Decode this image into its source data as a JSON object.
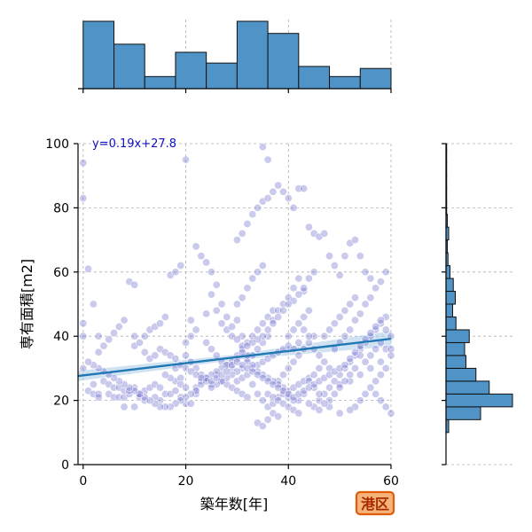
{
  "chart_data": {
    "type": "scatter",
    "xlabel": "築年数[年]",
    "ylabel": "専有面積[m2]",
    "xlim": [
      -1,
      60
    ],
    "ylim": [
      0,
      100
    ],
    "xticks": [
      0,
      20,
      40,
      60
    ],
    "yticks": [
      0,
      20,
      40,
      60,
      80,
      100
    ],
    "grid": true,
    "equation_label": "y=0.19x+27.8",
    "regression": {
      "slope": 0.19,
      "intercept": 27.8,
      "color": "#1f77b4",
      "band_color": "#a6cbe8"
    },
    "badge": "港区",
    "point_color": "#5555cc",
    "hist_color": "#4f93c7",
    "points": [
      [
        0,
        94
      ],
      [
        0,
        83
      ],
      [
        1,
        61
      ],
      [
        0,
        44
      ],
      [
        0,
        40
      ],
      [
        3,
        40
      ],
      [
        0,
        30
      ],
      [
        2,
        25
      ],
      [
        1,
        23
      ],
      [
        2,
        22
      ],
      [
        3,
        22
      ],
      [
        3,
        21
      ],
      [
        5,
        22
      ],
      [
        6,
        21
      ],
      [
        7,
        21
      ],
      [
        8,
        21
      ],
      [
        9,
        22
      ],
      [
        4,
        26
      ],
      [
        5,
        25
      ],
      [
        6,
        24
      ],
      [
        7,
        24
      ],
      [
        8,
        23
      ],
      [
        9,
        23
      ],
      [
        10,
        24
      ],
      [
        11,
        22
      ],
      [
        11,
        21
      ],
      [
        12,
        23
      ],
      [
        13,
        24
      ],
      [
        14,
        25
      ],
      [
        15,
        24
      ],
      [
        16,
        22
      ],
      [
        12,
        20
      ],
      [
        10,
        18
      ],
      [
        8,
        18
      ],
      [
        15,
        20
      ],
      [
        14,
        21
      ],
      [
        17,
        22
      ],
      [
        18,
        23
      ],
      [
        18,
        26
      ],
      [
        19,
        27
      ],
      [
        19,
        25
      ],
      [
        20,
        24
      ],
      [
        17,
        27
      ],
      [
        16,
        28
      ],
      [
        18,
        30
      ],
      [
        19,
        21
      ],
      [
        20,
        19
      ],
      [
        21,
        19
      ],
      [
        22,
        22
      ],
      [
        22,
        24
      ],
      [
        23,
        26
      ],
      [
        24,
        27
      ],
      [
        25,
        25
      ],
      [
        23,
        28
      ],
      [
        22,
        30
      ],
      [
        21,
        32
      ],
      [
        20,
        34
      ],
      [
        20,
        38
      ],
      [
        21,
        40
      ],
      [
        22,
        42
      ],
      [
        21,
        45
      ],
      [
        24,
        38
      ],
      [
        25,
        36
      ],
      [
        26,
        34
      ],
      [
        27,
        32
      ],
      [
        28,
        31
      ],
      [
        29,
        30
      ],
      [
        26,
        28
      ],
      [
        27,
        26
      ],
      [
        28,
        25
      ],
      [
        29,
        24
      ],
      [
        30,
        23
      ],
      [
        31,
        22
      ],
      [
        32,
        21
      ],
      [
        30,
        26
      ],
      [
        31,
        27
      ],
      [
        32,
        28
      ],
      [
        33,
        30
      ],
      [
        34,
        31
      ],
      [
        35,
        32
      ],
      [
        36,
        33
      ],
      [
        37,
        34
      ],
      [
        38,
        35
      ],
      [
        39,
        36
      ],
      [
        40,
        37
      ],
      [
        30,
        34
      ],
      [
        31,
        36
      ],
      [
        32,
        38
      ],
      [
        33,
        40
      ],
      [
        34,
        42
      ],
      [
        35,
        44
      ],
      [
        36,
        46
      ],
      [
        37,
        48
      ],
      [
        30,
        50
      ],
      [
        31,
        52
      ],
      [
        32,
        55
      ],
      [
        33,
        58
      ],
      [
        34,
        60
      ],
      [
        35,
        62
      ],
      [
        30,
        45
      ],
      [
        29,
        40
      ],
      [
        28,
        42
      ],
      [
        27,
        44
      ],
      [
        25,
        53
      ],
      [
        24,
        47
      ],
      [
        26,
        48
      ],
      [
        31,
        40
      ],
      [
        32,
        33
      ],
      [
        33,
        25
      ],
      [
        34,
        22
      ],
      [
        35,
        20
      ],
      [
        36,
        18
      ],
      [
        37,
        16
      ],
      [
        38,
        15
      ],
      [
        34,
        13
      ],
      [
        35,
        12
      ],
      [
        36,
        14
      ],
      [
        37,
        19
      ],
      [
        38,
        21
      ],
      [
        39,
        22
      ],
      [
        40,
        23
      ],
      [
        41,
        24
      ],
      [
        42,
        25
      ],
      [
        43,
        26
      ],
      [
        44,
        27
      ],
      [
        45,
        28
      ],
      [
        46,
        30
      ],
      [
        38,
        26
      ],
      [
        39,
        28
      ],
      [
        40,
        30
      ],
      [
        41,
        32
      ],
      [
        42,
        34
      ],
      [
        43,
        36
      ],
      [
        44,
        38
      ],
      [
        45,
        40
      ],
      [
        40,
        40
      ],
      [
        41,
        42
      ],
      [
        42,
        44
      ],
      [
        43,
        46
      ],
      [
        44,
        48
      ],
      [
        40,
        52
      ],
      [
        41,
        55
      ],
      [
        42,
        58
      ],
      [
        43,
        54
      ],
      [
        39,
        50
      ],
      [
        38,
        48
      ],
      [
        37,
        45
      ],
      [
        36,
        40
      ],
      [
        35,
        38
      ],
      [
        34,
        36
      ],
      [
        33,
        34
      ],
      [
        32,
        32
      ],
      [
        31,
        30
      ],
      [
        30,
        29
      ],
      [
        29,
        28
      ],
      [
        28,
        27
      ],
      [
        27,
        26
      ],
      [
        26,
        25
      ],
      [
        25,
        24
      ],
      [
        36,
        22
      ],
      [
        37,
        21
      ],
      [
        38,
        20
      ],
      [
        39,
        19
      ],
      [
        40,
        18
      ],
      [
        41,
        17
      ],
      [
        42,
        16
      ],
      [
        45,
        18
      ],
      [
        46,
        20
      ],
      [
        47,
        22
      ],
      [
        48,
        24
      ],
      [
        49,
        26
      ],
      [
        50,
        28
      ],
      [
        51,
        30
      ],
      [
        52,
        32
      ],
      [
        53,
        34
      ],
      [
        54,
        36
      ],
      [
        55,
        38
      ],
      [
        56,
        40
      ],
      [
        57,
        42
      ],
      [
        58,
        44
      ],
      [
        59,
        46
      ],
      [
        49,
        36
      ],
      [
        50,
        38
      ],
      [
        51,
        40
      ],
      [
        52,
        42
      ],
      [
        53,
        45
      ],
      [
        54,
        47
      ],
      [
        55,
        50
      ],
      [
        56,
        52
      ],
      [
        57,
        55
      ],
      [
        58,
        57
      ],
      [
        59,
        60
      ],
      [
        48,
        30
      ],
      [
        47,
        32
      ],
      [
        46,
        34
      ],
      [
        45,
        36
      ],
      [
        44,
        40
      ],
      [
        43,
        42
      ],
      [
        42,
        38
      ],
      [
        41,
        36
      ],
      [
        47,
        40
      ],
      [
        48,
        42
      ],
      [
        49,
        44
      ],
      [
        50,
        46
      ],
      [
        51,
        48
      ],
      [
        52,
        50
      ],
      [
        53,
        52
      ],
      [
        50,
        25
      ],
      [
        52,
        26
      ],
      [
        54,
        28
      ],
      [
        56,
        30
      ],
      [
        58,
        32
      ],
      [
        60,
        34
      ],
      [
        59,
        30
      ],
      [
        58,
        28
      ],
      [
        57,
        26
      ],
      [
        56,
        24
      ],
      [
        55,
        22
      ],
      [
        54,
        20
      ],
      [
        53,
        18
      ],
      [
        52,
        17
      ],
      [
        50,
        16
      ],
      [
        48,
        18
      ],
      [
        46,
        17
      ],
      [
        44,
        19
      ],
      [
        60,
        16
      ],
      [
        59,
        18
      ],
      [
        58,
        20
      ],
      [
        57,
        22
      ],
      [
        59,
        36
      ],
      [
        60,
        40
      ],
      [
        58,
        38
      ],
      [
        57,
        36
      ],
      [
        56,
        34
      ],
      [
        55,
        32
      ],
      [
        54,
        34
      ],
      [
        53,
        30
      ],
      [
        52,
        28
      ],
      [
        51,
        26
      ],
      [
        50,
        24
      ],
      [
        49,
        22
      ],
      [
        48,
        20
      ],
      [
        47,
        19
      ],
      [
        46,
        22
      ],
      [
        45,
        24
      ],
      [
        44,
        26
      ],
      [
        43,
        22
      ],
      [
        42,
        20
      ],
      [
        41,
        20
      ],
      [
        40,
        21
      ],
      [
        39,
        24
      ],
      [
        38,
        25
      ],
      [
        37,
        26
      ],
      [
        36,
        27
      ],
      [
        35,
        28
      ],
      [
        34,
        29
      ],
      [
        33,
        31
      ],
      [
        32,
        34
      ],
      [
        31,
        37
      ],
      [
        30,
        39
      ],
      [
        29,
        43
      ],
      [
        28,
        46
      ],
      [
        27,
        50
      ],
      [
        26,
        56
      ],
      [
        25,
        60
      ],
      [
        24,
        63
      ],
      [
        23,
        65
      ],
      [
        22,
        68
      ],
      [
        30,
        70
      ],
      [
        31,
        72
      ],
      [
        32,
        75
      ],
      [
        33,
        78
      ],
      [
        34,
        80
      ],
      [
        35,
        82
      ],
      [
        36,
        83
      ],
      [
        37,
        85
      ],
      [
        38,
        87
      ],
      [
        39,
        85
      ],
      [
        40,
        83
      ],
      [
        41,
        80
      ],
      [
        42,
        86
      ],
      [
        43,
        86
      ],
      [
        44,
        74
      ],
      [
        45,
        72
      ],
      [
        46,
        71
      ],
      [
        47,
        72
      ],
      [
        48,
        65
      ],
      [
        49,
        62
      ],
      [
        50,
        59
      ],
      [
        51,
        65
      ],
      [
        52,
        69
      ],
      [
        53,
        70
      ],
      [
        54,
        65
      ],
      [
        55,
        60
      ],
      [
        56,
        58
      ],
      [
        45,
        60
      ],
      [
        44,
        58
      ],
      [
        43,
        55
      ],
      [
        42,
        53
      ],
      [
        41,
        51
      ],
      [
        40,
        50
      ],
      [
        39,
        48
      ],
      [
        38,
        46
      ],
      [
        37,
        44
      ],
      [
        36,
        42
      ],
      [
        35,
        40
      ],
      [
        34,
        39
      ],
      [
        33,
        38
      ],
      [
        32,
        37
      ],
      [
        31,
        35
      ],
      [
        30,
        33
      ],
      [
        29,
        32
      ],
      [
        28,
        31
      ],
      [
        27,
        30
      ],
      [
        26,
        29
      ],
      [
        25,
        28
      ],
      [
        24,
        27
      ],
      [
        23,
        25
      ],
      [
        22,
        23
      ],
      [
        21,
        22
      ],
      [
        20,
        21
      ],
      [
        19,
        20
      ],
      [
        18,
        19
      ],
      [
        17,
        18
      ],
      [
        16,
        18
      ],
      [
        15,
        18
      ],
      [
        14,
        19
      ],
      [
        13,
        20
      ],
      [
        12,
        21
      ],
      [
        11,
        22
      ],
      [
        10,
        23
      ],
      [
        9,
        24
      ],
      [
        8,
        25
      ],
      [
        7,
        26
      ],
      [
        6,
        27
      ],
      [
        5,
        28
      ],
      [
        4,
        29
      ],
      [
        3,
        30
      ],
      [
        2,
        31
      ],
      [
        1,
        32
      ],
      [
        10,
        37
      ],
      [
        11,
        38
      ],
      [
        12,
        40
      ],
      [
        13,
        42
      ],
      [
        14,
        43
      ],
      [
        15,
        44
      ],
      [
        16,
        46
      ],
      [
        17,
        59
      ],
      [
        18,
        60
      ],
      [
        19,
        62
      ],
      [
        20,
        95
      ],
      [
        35,
        99
      ],
      [
        36,
        95
      ],
      [
        9,
        57
      ],
      [
        10,
        56
      ],
      [
        8,
        45
      ],
      [
        7,
        43
      ],
      [
        6,
        41
      ],
      [
        5,
        39
      ],
      [
        4,
        37
      ],
      [
        3,
        35
      ],
      [
        2,
        50
      ],
      [
        10,
        40
      ],
      [
        12,
        35
      ],
      [
        13,
        33
      ],
      [
        14,
        34
      ],
      [
        15,
        36
      ],
      [
        16,
        35
      ],
      [
        17,
        34
      ],
      [
        18,
        33
      ],
      [
        19,
        31
      ],
      [
        20,
        30
      ],
      [
        21,
        29
      ],
      [
        22,
        28
      ],
      [
        23,
        27
      ],
      [
        24,
        26
      ],
      [
        25,
        26
      ],
      [
        26,
        27
      ],
      [
        27,
        28
      ],
      [
        28,
        29
      ],
      [
        29,
        31
      ],
      [
        30,
        32
      ],
      [
        31,
        31
      ],
      [
        32,
        30
      ],
      [
        33,
        29
      ],
      [
        34,
        28
      ],
      [
        35,
        27
      ],
      [
        36,
        26
      ],
      [
        37,
        25
      ],
      [
        38,
        24
      ],
      [
        39,
        23
      ],
      [
        40,
        22
      ],
      [
        41,
        21
      ],
      [
        42,
        22
      ],
      [
        43,
        23
      ],
      [
        44,
        24
      ],
      [
        45,
        25
      ],
      [
        46,
        26
      ],
      [
        47,
        27
      ],
      [
        48,
        28
      ],
      [
        49,
        29
      ],
      [
        50,
        30
      ],
      [
        51,
        31
      ],
      [
        52,
        33
      ],
      [
        53,
        35
      ],
      [
        54,
        37
      ],
      [
        55,
        39
      ],
      [
        56,
        41
      ],
      [
        57,
        43
      ],
      [
        58,
        45
      ],
      [
        59,
        42
      ],
      [
        60,
        36
      ]
    ],
    "hist_x": {
      "edges": [
        0,
        6,
        12,
        18,
        24,
        30,
        36,
        42,
        48,
        54,
        60
      ],
      "counts": [
        100,
        66,
        18,
        54,
        38,
        100,
        82,
        33,
        18,
        30
      ],
      "max": 100
    },
    "hist_y": {
      "edges": [
        10,
        14,
        18,
        22,
        26,
        30,
        34,
        38,
        42,
        46,
        50,
        54,
        58,
        62,
        66,
        70,
        74,
        78,
        82,
        86,
        90,
        94,
        98,
        100
      ],
      "counts": [
        4,
        52,
        100,
        65,
        45,
        30,
        28,
        35,
        15,
        10,
        14,
        11,
        6,
        3,
        2,
        4,
        2,
        1,
        1,
        1,
        1,
        1,
        1
      ],
      "max": 100
    }
  }
}
